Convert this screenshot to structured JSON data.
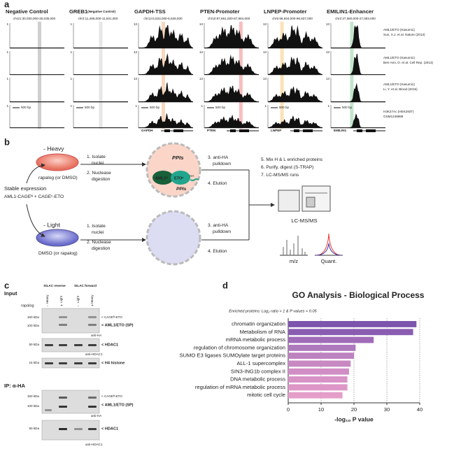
{
  "panel_labels": [
    "a",
    "b",
    "c",
    "d"
  ],
  "panel_a": {
    "columns": [
      {
        "title": "Negative Control",
        "subtitle": null,
        "coords": "chr21:30,000,000-30,035,000",
        "gene": null
      },
      {
        "title": "GREB1",
        "subtitle": "(Negative Control)",
        "coords": "chr2:11,496,000-11,501,000",
        "gene": null
      },
      {
        "title": "GAPDH-TSS",
        "subtitle": null,
        "coords": "chr12:6,533,000-6,536,000",
        "gene": "GAPDH"
      },
      {
        "title": "PTEN-Promoter",
        "subtitle": null,
        "coords": "chr10:87,861,000-87,864,000",
        "gene": "PTEN"
      },
      {
        "title": "LNPEP-Promoter",
        "subtitle": null,
        "coords": "chr5:96,934,000-96,937,000",
        "gene": "LNPEP"
      },
      {
        "title": "EMILIN1-Enhancer",
        "subtitle": null,
        "coords": "chr2:27,080,000-27,083,000",
        "gene": "EMILIN1"
      }
    ],
    "scale_top": "13",
    "scale_bottom": "1",
    "scale_bar": "500 bp",
    "rows": [
      [
        "AML1/ETO (Kasumi1)",
        "Sun, X.J. et al. Nature (2013)"
      ],
      [
        "AML1/ETO (Kasumi1)",
        "Ben-Ami, O. et al. Cell Rep. (2013)"
      ],
      [
        "AML1/ETO (Kasumi1)",
        "Li, Y. et al. Blood (2015)"
      ],
      [
        "H3K27Ac (HEK293T)",
        "GSM1249889"
      ]
    ]
  },
  "panel_b": {
    "heavy": "- Heavy",
    "heavy_treatment": "rapalog (or DMSO)",
    "light": "- Light",
    "light_treatment": "DMSO (or rapalog)",
    "stable": "Stable expression",
    "construct": "AML1-CAGEᴺ + CAGEᶜ-ETO",
    "steps_a": [
      "1. Isolate",
      "nuclei",
      "2. Nuclease",
      "digestion"
    ],
    "steps_b": [
      "3. anti-HA",
      "pulldown",
      "4. Elution"
    ],
    "steps_c": [
      "5. Mix H & L enriched proteins",
      "6. Purify, digest (S-TRAP)",
      "7. LC-MS/MS runs"
    ],
    "ppis": "PPIs",
    "aml1": "AML1ᴺ",
    "eto": "ETOᶜ",
    "ha": "HA",
    "instrument": "LC-MS/MS",
    "mz": "m/z",
    "quant": "Quant."
  },
  "panel_c": {
    "input": "Input",
    "ip": "IP: α-HA",
    "rapalog": "rapalog",
    "groups": [
      "SILAC reverse",
      "SILAC forward"
    ],
    "lanes": [
      "Heavy",
      "Light",
      "Light",
      "Heavy"
    ],
    "treat": [
      "-",
      "+",
      "-",
      "+"
    ],
    "kda": [
      "150 kDa",
      "100 kDa",
      "50 kDa",
      "15 kDa"
    ],
    "bands": [
      "< CAGEᴺ-ETO",
      "< AML1/ETO (SP)",
      "< HDAC1",
      "< H4 histone"
    ],
    "antibodies": [
      "anti-HA",
      "anti-HDAC1"
    ]
  },
  "chart_data": {
    "type": "hbar",
    "title": "GO Analysis - Biological Process",
    "subtitle": "Enriched proteins: Log₂ ratio > 1 & P values < 0.05",
    "xlabel": "-log₁₀ P value",
    "categories": [
      "chromatin organization",
      "Metabolism of RNA",
      "mRNA metabolic process",
      "regulation of chromosome organization",
      "SUMO E3 ligases SUMOylate target proteins",
      "ALL-1 supercomplex",
      "SIN3-ING1b complex II",
      "DNA metabolic process",
      "regulation of mRNA metabolic process",
      "mitotic cell cycle"
    ],
    "values": [
      39,
      38,
      26,
      20.5,
      20,
      19,
      18.5,
      18,
      18,
      16.5
    ],
    "colors": [
      "#7e55ad",
      "#8a5db1",
      "#a06bb8",
      "#ae78bd",
      "#bd82c0",
      "#c889c3",
      "#d08ec5",
      "#d792c6",
      "#dd96c7",
      "#e49ec9"
    ],
    "xlim": [
      0,
      40
    ],
    "xticks": [
      0,
      10,
      20,
      30,
      40
    ],
    "grid": true
  }
}
